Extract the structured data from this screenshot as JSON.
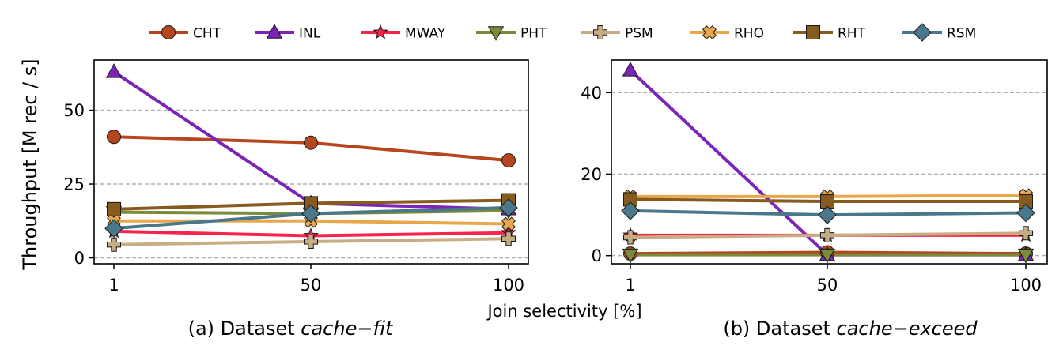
{
  "figure": {
    "ylabel": "Throughput [M rec / s]",
    "shared_xlabel": "Join selectivity [%]"
  },
  "legend": [
    {
      "name": "CHT",
      "color": "#b5461e",
      "marker": "circle"
    },
    {
      "name": "INL",
      "color": "#7b24b8",
      "marker": "triangle-up"
    },
    {
      "name": "MWAY",
      "color": "#f7254d",
      "marker": "star"
    },
    {
      "name": "PHT",
      "color": "#7a8c3a",
      "marker": "triangle-down"
    },
    {
      "name": "PSM",
      "color": "#c7ad84",
      "marker": "plus"
    },
    {
      "name": "RHO",
      "color": "#e8a74a",
      "marker": "x"
    },
    {
      "name": "RHT",
      "color": "#875a1e",
      "marker": "square"
    },
    {
      "name": "RSM",
      "color": "#49778c",
      "marker": "diamond"
    }
  ],
  "chart_data": [
    {
      "type": "line",
      "caption_prefix": "(a) Dataset ",
      "caption_italic": "cache−fit",
      "x": [
        1,
        50,
        100
      ],
      "xticks": [
        "1",
        "50",
        "100"
      ],
      "ylim": [
        -2,
        67
      ],
      "yticks": [
        0,
        25,
        50
      ],
      "grid": "y-dashed",
      "series": [
        {
          "name": "CHT",
          "values": [
            41,
            39,
            33
          ]
        },
        {
          "name": "INL",
          "values": [
            63,
            18.5,
            16.5
          ]
        },
        {
          "name": "MWAY",
          "values": [
            9,
            7.5,
            8.5
          ]
        },
        {
          "name": "PHT",
          "values": [
            15.5,
            15,
            16
          ]
        },
        {
          "name": "PSM",
          "values": [
            4.5,
            5.5,
            6.5
          ]
        },
        {
          "name": "RHO",
          "values": [
            12.5,
            12.5,
            11.5
          ]
        },
        {
          "name": "RHT",
          "values": [
            16.5,
            18.5,
            19.5
          ]
        },
        {
          "name": "RSM",
          "values": [
            10,
            15,
            17
          ]
        }
      ]
    },
    {
      "type": "line",
      "caption_prefix": "(b) Dataset ",
      "caption_italic": "cache−exceed",
      "x": [
        1,
        50,
        100
      ],
      "xticks": [
        "1",
        "50",
        "100"
      ],
      "ylim": [
        -2,
        48
      ],
      "yticks": [
        0,
        20,
        40
      ],
      "grid": "y-dashed",
      "series": [
        {
          "name": "CHT",
          "values": [
            0.5,
            0.8,
            0.5
          ]
        },
        {
          "name": "INL",
          "values": [
            45.5,
            0.2,
            0.2
          ]
        },
        {
          "name": "MWAY",
          "values": [
            5,
            5,
            5
          ]
        },
        {
          "name": "PHT",
          "values": [
            0.2,
            0.2,
            0.2
          ]
        },
        {
          "name": "PSM",
          "values": [
            4.5,
            5,
            5.5
          ]
        },
        {
          "name": "RHO",
          "values": [
            14.5,
            14.5,
            14.8
          ]
        },
        {
          "name": "RHT",
          "values": [
            13.8,
            13.3,
            13.3
          ]
        },
        {
          "name": "RSM",
          "values": [
            11,
            10,
            10.5
          ]
        }
      ]
    }
  ]
}
